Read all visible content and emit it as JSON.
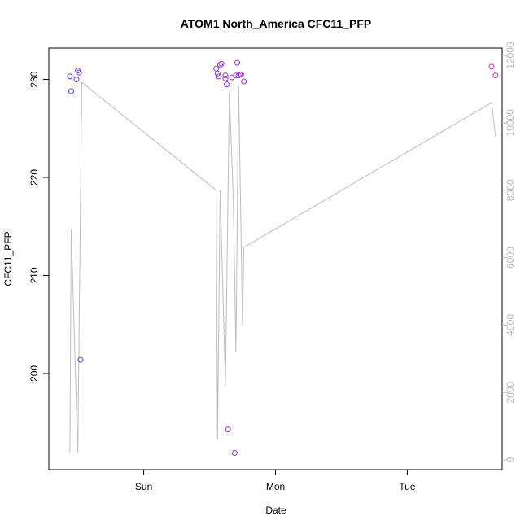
{
  "chart_data": {
    "type": "scatter",
    "title": "ATOM1 North_America CFC11_PFP",
    "xlabel": "Date",
    "ylabel": "CFC11_PFP",
    "x_ticks": [
      "Sun",
      "Mon",
      "Tue"
    ],
    "x_tick_values": [
      1,
      2,
      3
    ],
    "xlim": [
      0.28,
      3.72
    ],
    "ylim": [
      190.2,
      233.2
    ],
    "y_ticks": [
      200,
      210,
      220,
      230
    ],
    "y2lim": [
      -290,
      12220
    ],
    "y2_ticks": [
      0,
      2000,
      4000,
      6000,
      8000,
      10000,
      12000
    ],
    "grid": false,
    "legend": "none",
    "colors": {
      "line": "#bdbdbd",
      "point_start": "#6a3cf0",
      "point_end": "#e61fd0",
      "axis": "#000000",
      "axis_right": "#bdbdbd"
    },
    "series": [
      {
        "type": "points",
        "x": [
          0.44,
          0.45,
          0.49,
          0.5,
          0.51,
          0.52,
          1.55,
          1.56,
          1.57,
          1.58,
          1.59,
          1.62,
          1.62,
          1.63,
          1.64,
          1.67,
          1.69,
          1.7,
          1.71,
          1.72,
          1.73,
          1.74,
          1.76,
          3.64,
          3.67
        ],
        "y": [
          230.3,
          228.8,
          230.0,
          230.9,
          230.7,
          201.4,
          231.1,
          230.6,
          230.3,
          231.5,
          231.6,
          230.1,
          230.4,
          229.5,
          194.3,
          230.2,
          191.9,
          230.4,
          231.7,
          230.4,
          230.5,
          230.5,
          229.8,
          231.3,
          230.4
        ]
      },
      {
        "type": "line",
        "axis": "right",
        "x": [
          0.44,
          0.45,
          0.5,
          0.53,
          1.55,
          1.56,
          1.58,
          1.62,
          1.65,
          1.68,
          1.7,
          1.72,
          1.75,
          1.76,
          3.64,
          3.67
        ],
        "y": [
          200,
          6850,
          200,
          11200,
          8000,
          600,
          8000,
          2200,
          10900,
          7700,
          3200,
          11100,
          4000,
          6300,
          10600,
          9600
        ]
      }
    ]
  }
}
